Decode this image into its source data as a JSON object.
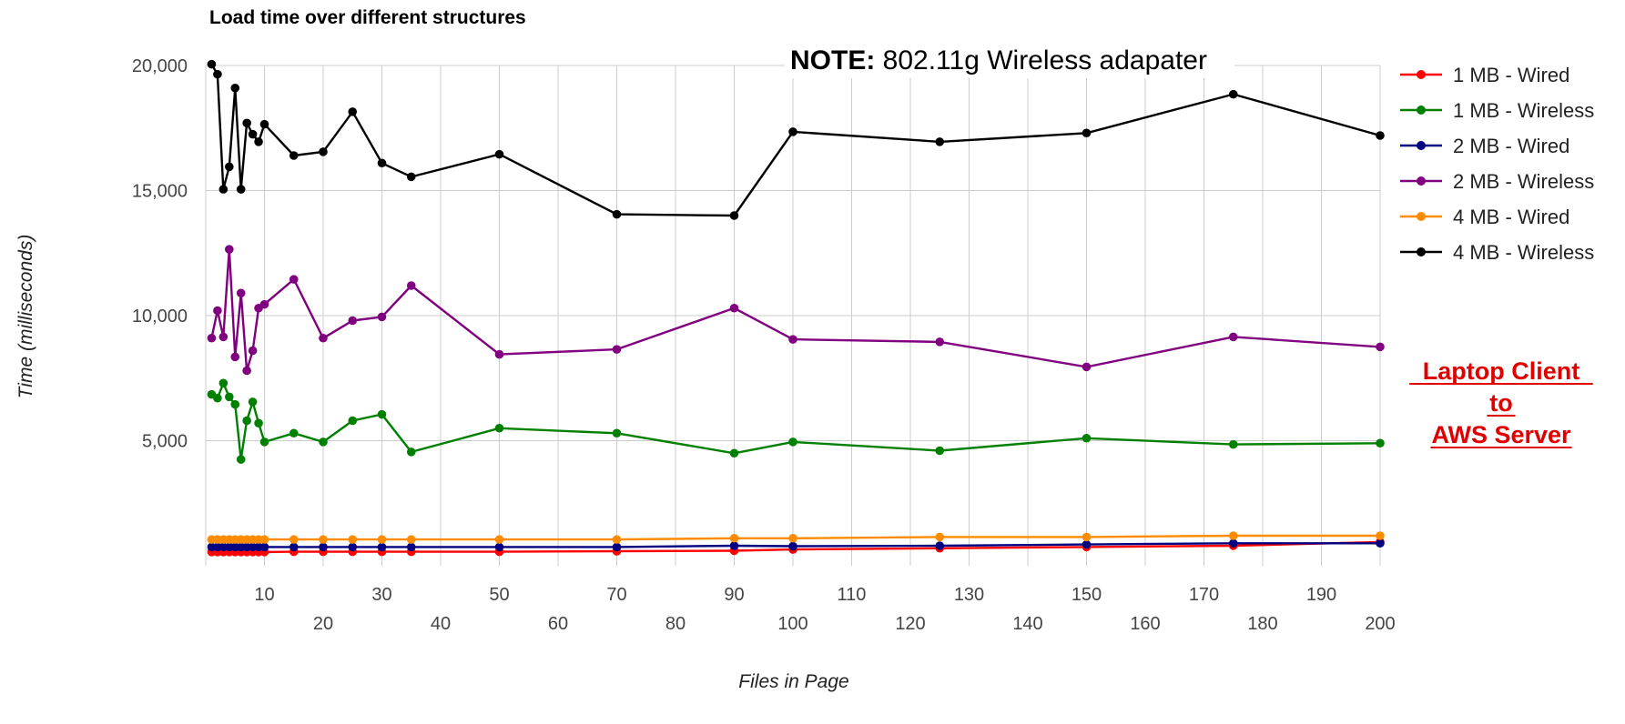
{
  "chart_data": {
    "type": "line",
    "title": "Load time over different structures",
    "xlabel": "Files in Page",
    "ylabel": "Time (milliseconds)",
    "note_bold": "NOTE:",
    "note_text": " 802.11g Wireless adapater",
    "annotation": [
      "Laptop Client",
      "to",
      "AWS Server"
    ],
    "xlim": [
      0,
      200
    ],
    "ylim": [
      0,
      20000
    ],
    "x_ticks_upper": [
      10,
      30,
      50,
      70,
      90,
      110,
      130,
      150,
      170,
      190
    ],
    "x_ticks_lower": [
      20,
      40,
      60,
      80,
      100,
      120,
      140,
      160,
      180,
      200
    ],
    "y_ticks": [
      {
        "value": 5000,
        "label": "5,000"
      },
      {
        "value": 10000,
        "label": "10,000"
      },
      {
        "value": 15000,
        "label": "15,000"
      },
      {
        "value": 20000,
        "label": "20,000"
      }
    ],
    "grid": true,
    "legend_position": "right",
    "x": [
      1,
      2,
      3,
      4,
      5,
      6,
      7,
      8,
      9,
      10,
      15,
      20,
      25,
      30,
      35,
      50,
      70,
      90,
      100,
      125,
      150,
      175,
      200
    ],
    "series": [
      {
        "name": "1 MB - Wired",
        "color": "#ff0000",
        "values": [
          550,
          550,
          550,
          550,
          550,
          550,
          550,
          550,
          550,
          550,
          560,
          560,
          560,
          560,
          560,
          560,
          580,
          600,
          650,
          700,
          750,
          800,
          950
        ]
      },
      {
        "name": "1 MB - Wireless",
        "color": "#008000",
        "values": [
          6850,
          6700,
          7300,
          6750,
          6450,
          4250,
          5800,
          6550,
          5700,
          4950,
          5300,
          4950,
          5800,
          6050,
          4550,
          5500,
          5300,
          4500,
          4950,
          4600,
          5100,
          4850,
          4900
        ]
      },
      {
        "name": "2 MB - Wired",
        "color": "#000080",
        "values": [
          750,
          750,
          750,
          750,
          750,
          750,
          750,
          750,
          750,
          750,
          750,
          750,
          750,
          750,
          750,
          750,
          750,
          800,
          780,
          800,
          850,
          900,
          900
        ]
      },
      {
        "name": "2 MB - Wireless",
        "color": "#800080",
        "values": [
          9100,
          10200,
          9150,
          12650,
          8350,
          10900,
          7800,
          8600,
          10300,
          10450,
          11450,
          9100,
          9800,
          9950,
          11200,
          8450,
          8650,
          10300,
          9050,
          8950,
          7950,
          9150,
          8750
        ]
      },
      {
        "name": "4 MB - Wired",
        "color": "#ff8c00",
        "values": [
          1050,
          1050,
          1050,
          1050,
          1050,
          1050,
          1050,
          1050,
          1050,
          1050,
          1050,
          1050,
          1050,
          1050,
          1050,
          1050,
          1050,
          1100,
          1100,
          1150,
          1150,
          1200,
          1200
        ]
      },
      {
        "name": "4 MB - Wireless",
        "color": "#000000",
        "values": [
          20050,
          19650,
          15050,
          15950,
          19100,
          15050,
          17700,
          17250,
          16950,
          17650,
          16400,
          16550,
          18150,
          16100,
          15550,
          16450,
          14050,
          14000,
          17350,
          16950,
          17300,
          18850,
          17200
        ]
      }
    ]
  }
}
